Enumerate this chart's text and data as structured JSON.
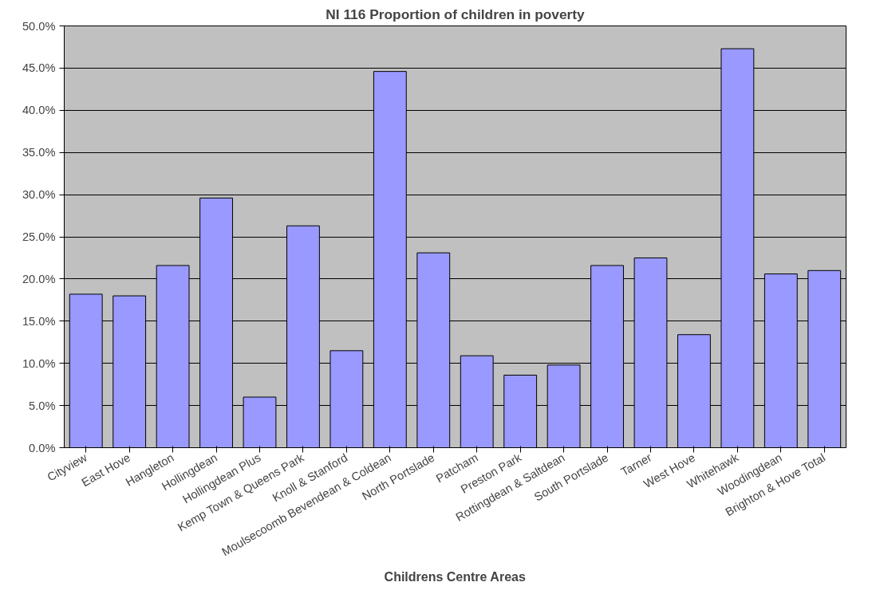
{
  "chart_data": {
    "type": "bar",
    "title": "NI 116 Proportion of children in poverty",
    "xlabel": "Childrens Centre Areas",
    "categories": [
      "Cityview",
      "East Hove",
      "Hangleton",
      "Hollingdean",
      "Hollingdean Plus",
      "Kemp Town & Queens Park",
      "Knoll & Stanford",
      "Moulsecoomb Bevendean & Coldean",
      "North Portslade",
      "Patcham",
      "Preston Park",
      "Rottingdean & Saltdean",
      "South Portslade",
      "Tarner",
      "West Hove",
      "Whitehawk",
      "Woodingdean",
      "Brighton & Hove Total"
    ],
    "values": [
      18.2,
      18.0,
      21.6,
      29.6,
      6.0,
      26.3,
      11.5,
      44.6,
      23.1,
      10.9,
      8.6,
      9.8,
      21.6,
      22.5,
      13.4,
      47.3,
      20.6,
      21.0
    ],
    "color": "#9999ff",
    "ylim": [
      0,
      50
    ],
    "yticks": [
      {
        "value": 0,
        "label": "0.0%"
      },
      {
        "value": 5,
        "label": "5.0%"
      },
      {
        "value": 10,
        "label": "10.0%"
      },
      {
        "value": 15,
        "label": "15.0%"
      },
      {
        "value": 20,
        "label": "20.0%"
      },
      {
        "value": 25,
        "label": "25.0%"
      },
      {
        "value": 30,
        "label": "30.0%"
      },
      {
        "value": 35,
        "label": "35.0%"
      },
      {
        "value": 40,
        "label": "40.0%"
      },
      {
        "value": 45,
        "label": "45.0%"
      },
      {
        "value": 50,
        "label": "50.0%"
      }
    ],
    "grid": "y"
  }
}
